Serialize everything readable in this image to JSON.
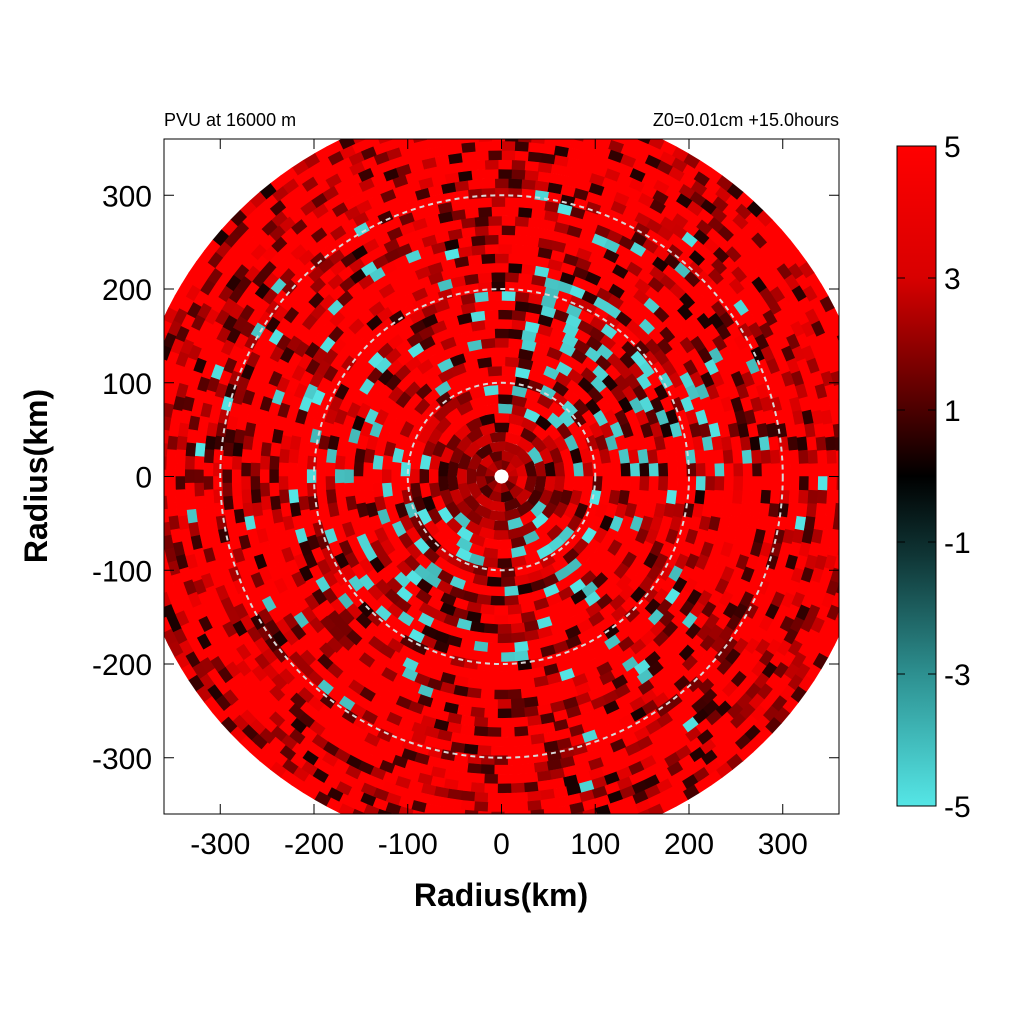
{
  "chart_data": {
    "type": "heatmap",
    "title_left": "PVU at 16000 m",
    "title_right": "Z0=0.01cm  +15.0hours",
    "xlabel": "Radius(km)",
    "ylabel": "Radius(km)",
    "xlim": [
      -360,
      360
    ],
    "ylim": [
      -360,
      360
    ],
    "x_ticks": [
      -300,
      -200,
      -100,
      0,
      100,
      200,
      300
    ],
    "y_ticks": [
      -300,
      -200,
      -100,
      0,
      100,
      200,
      300
    ],
    "x_tick_labels": [
      "-300",
      "-200",
      "-100",
      "0",
      "100",
      "200",
      "300"
    ],
    "y_tick_labels": [
      "300",
      "200",
      "100",
      "0",
      "-100",
      "-200",
      "-300"
    ],
    "domain_radius_km": 390,
    "reference_circles_km": [
      100,
      200,
      300
    ],
    "colorbar": {
      "min": -5,
      "max": 5,
      "ticks": [
        5,
        3,
        1,
        -1,
        -3,
        -5
      ],
      "tick_labels": [
        "5",
        "3",
        "1",
        "-1",
        "-3",
        "-5"
      ],
      "colors": {
        "high": "#ff0000",
        "mid": "#000000",
        "low": "#55e6e6"
      }
    },
    "field_description_values": {
      "dominant_value": 5,
      "negative_patches_value": -5,
      "negative_patches_zone_km": [
        30,
        300
      ]
    },
    "grid": false,
    "legend": "colorbar-right"
  }
}
